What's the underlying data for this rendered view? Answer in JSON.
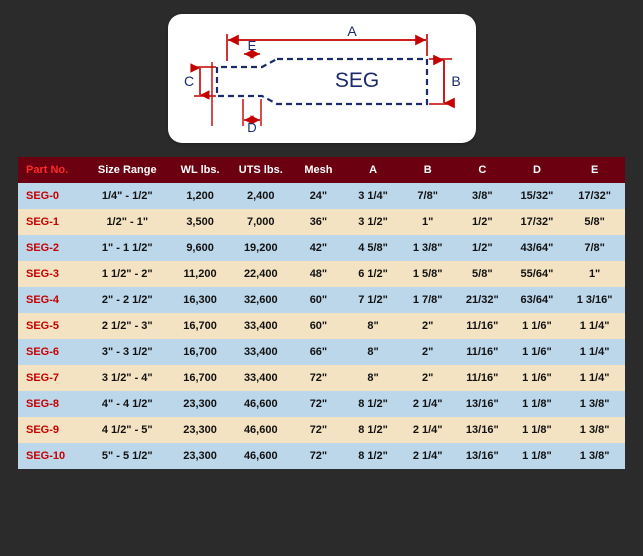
{
  "diagram": {
    "label_A": "A",
    "label_B": "B",
    "label_C": "C",
    "label_D": "D",
    "label_E": "E",
    "label_SEG": "SEG",
    "colors": {
      "card_bg": "#ffffff",
      "outline": "#1a2a6c",
      "arrows": "#c40000",
      "text_blue": "#1a2a6c",
      "text_red": "#c40000"
    }
  },
  "table": {
    "header_bg": "#6a0010",
    "header_fg": "#ffffff",
    "partno_fg": "#ff2a2a",
    "row_blue": "#bcd6ea",
    "row_cream": "#f4e3c2",
    "cell_partno_fg": "#c40000",
    "columns": [
      "Part No.",
      "Size Range",
      "WL lbs.",
      "UTS lbs.",
      "Mesh",
      "A",
      "B",
      "C",
      "D",
      "E"
    ],
    "rows": [
      {
        "part": "SEG-0",
        "cells": [
          "1/4\" - 1/2\"",
          "1,200",
          "2,400",
          "24\"",
          "3 1/4\"",
          "7/8\"",
          "3/8\"",
          "15/32\"",
          "17/32\""
        ]
      },
      {
        "part": "SEG-1",
        "cells": [
          "1/2\" - 1\"",
          "3,500",
          "7,000",
          "36\"",
          "3 1/2\"",
          "1\"",
          "1/2\"",
          "17/32\"",
          "5/8\""
        ]
      },
      {
        "part": "SEG-2",
        "cells": [
          "1\" - 1 1/2\"",
          "9,600",
          "19,200",
          "42\"",
          "4 5/8\"",
          "1 3/8\"",
          "1/2\"",
          "43/64\"",
          "7/8\""
        ]
      },
      {
        "part": "SEG-3",
        "cells": [
          "1 1/2\" - 2\"",
          "11,200",
          "22,400",
          "48\"",
          "6 1/2\"",
          "1 5/8\"",
          "5/8\"",
          "55/64\"",
          "1\""
        ]
      },
      {
        "part": "SEG-4",
        "cells": [
          "2\" - 2 1/2\"",
          "16,300",
          "32,600",
          "60\"",
          "7 1/2\"",
          "1 7/8\"",
          "21/32\"",
          "63/64\"",
          "1 3/16\""
        ]
      },
      {
        "part": "SEG-5",
        "cells": [
          "2 1/2\" - 3\"",
          "16,700",
          "33,400",
          "60\"",
          "8\"",
          "2\"",
          "11/16\"",
          "1 1/6\"",
          "1 1/4\""
        ]
      },
      {
        "part": "SEG-6",
        "cells": [
          "3\" - 3 1/2\"",
          "16,700",
          "33,400",
          "66\"",
          "8\"",
          "2\"",
          "11/16\"",
          "1 1/6\"",
          "1 1/4\""
        ]
      },
      {
        "part": "SEG-7",
        "cells": [
          "3 1/2\" - 4\"",
          "16,700",
          "33,400",
          "72\"",
          "8\"",
          "2\"",
          "11/16\"",
          "1 1/6\"",
          "1 1/4\""
        ]
      },
      {
        "part": "SEG-8",
        "cells": [
          "4\" - 4 1/2\"",
          "23,300",
          "46,600",
          "72\"",
          "8 1/2\"",
          "2 1/4\"",
          "13/16\"",
          "1 1/8\"",
          "1 3/8\""
        ]
      },
      {
        "part": "SEG-9",
        "cells": [
          "4 1/2\" - 5\"",
          "23,300",
          "46,600",
          "72\"",
          "8 1/2\"",
          "2 1/4\"",
          "13/16\"",
          "1 1/8\"",
          "1 3/8\""
        ]
      },
      {
        "part": "SEG-10",
        "cells": [
          "5\" - 5 1/2\"",
          "23,300",
          "46,600",
          "72\"",
          "8 1/2\"",
          "2 1/4\"",
          "13/16\"",
          "1 1/8\"",
          "1 3/8\""
        ]
      }
    ]
  }
}
